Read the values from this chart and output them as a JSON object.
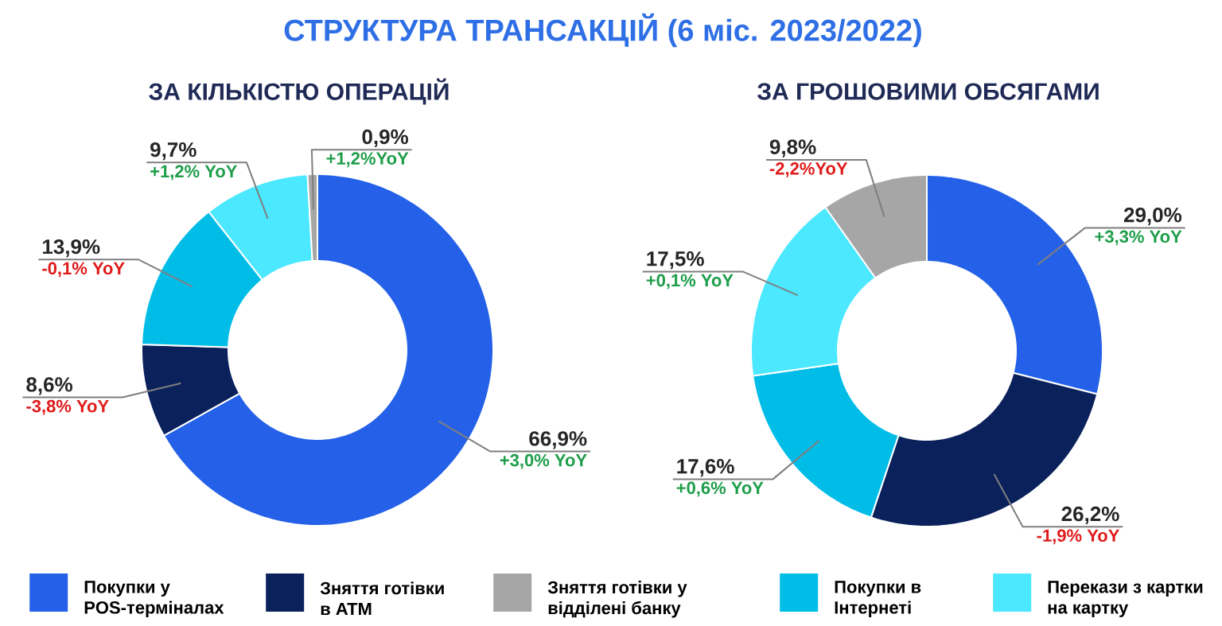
{
  "chart_data": {
    "type": "donut",
    "title": "СТРУКТУРА ТРАНСАКЦІЙ (6 міс. 2023/2022)",
    "categories": [
      "Покупки у POS-терміналах",
      "Зняття готівки в ATM",
      "Покупки в Інтернеті",
      "Перекази з картки на картку",
      "Зняття готівки у відділені банку"
    ],
    "colors": [
      "#2461e8",
      "#0a215c",
      "#00bde8",
      "#4be8ff",
      "#a6a6a6"
    ],
    "series": [
      {
        "name": "ЗА КІЛЬКІСТЮ ОПЕРАЦІЙ",
        "values": [
          66.9,
          8.6,
          13.9,
          9.7,
          0.9
        ],
        "value_labels": [
          "66,9%",
          "8,6%",
          "13,9%",
          "9,7%",
          "0,9%"
        ]
      },
      {
        "name": "ЗА ГРОШОВИМИ ОБСЯГАМИ",
        "values": [
          29.0,
          26.2,
          17.6,
          17.5,
          9.8
        ],
        "value_labels": [
          "29,0%",
          "26,2%",
          "17,6%",
          "17,5%",
          "9,8%"
        ]
      }
    ],
    "annotations": [
      "+3,0% YoY",
      "-3,8% YoY",
      "-0,1% YoY",
      "+1,2% YoY",
      "+1,2%YoY",
      "+3,3% YoY",
      "-1,9% YoY",
      "+0,6% YoY",
      "+0,1% YoY",
      "-2,2%YoY"
    ],
    "legend": "bottom"
  }
}
